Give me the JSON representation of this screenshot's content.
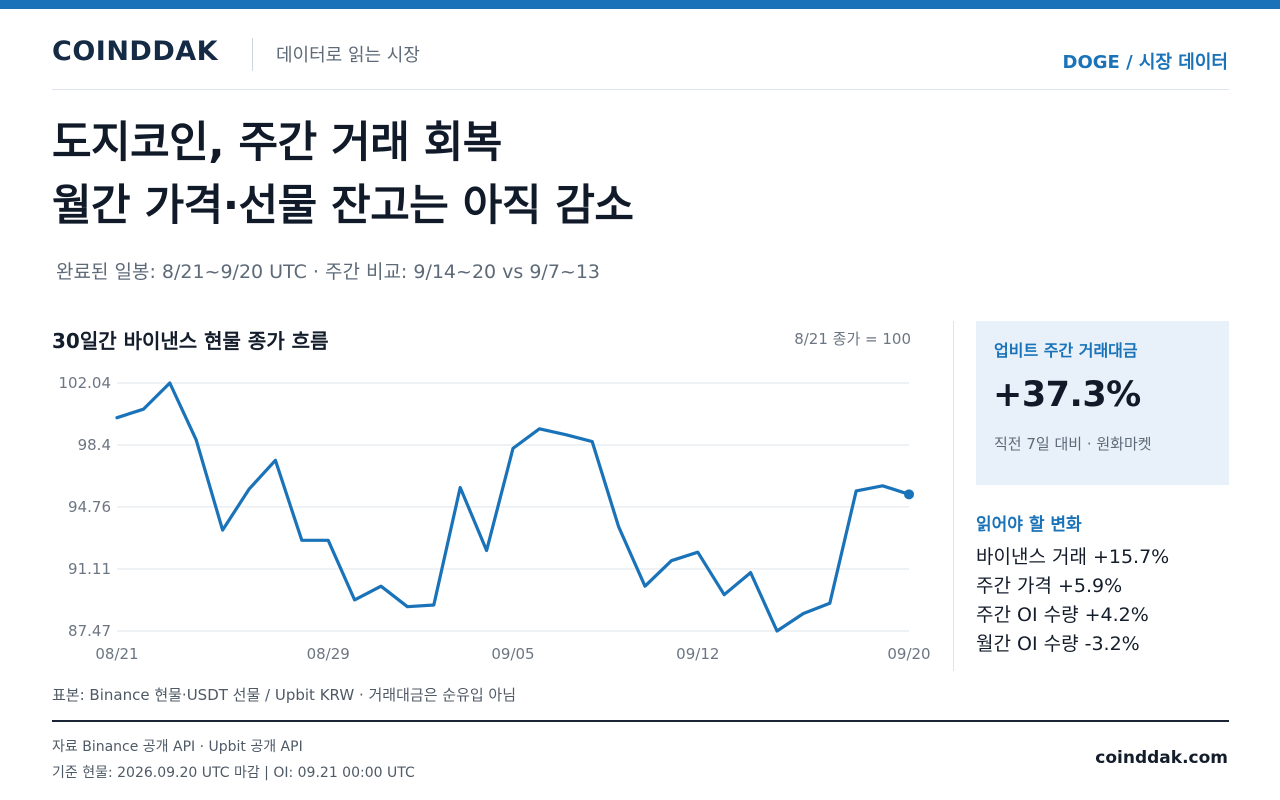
{
  "header": {
    "brand": "COINDDAK",
    "tagline": "데이터로 읽는 시장",
    "section": "DOGE / 시장 데이터"
  },
  "headline": {
    "line1": "도지코인, 주간 거래 회복",
    "line2": "월간 가격·선물 잔고는 아직 감소"
  },
  "subtitle": "완료된 일봉: 8/21~9/20 UTC · 주간 비교: 9/14~20 vs 9/7~13",
  "chart_section": {
    "title": "30일간 바이낸스 현물 종가 흐름",
    "note": "8/21 종가 = 100"
  },
  "chart_data": {
    "type": "line",
    "title": "30일간 바이낸스 현물 종가 흐름",
    "xlabel": "",
    "ylabel": "",
    "x": [
      "08/21",
      "08/22",
      "08/23",
      "08/24",
      "08/25",
      "08/26",
      "08/27",
      "08/28",
      "08/29",
      "08/30",
      "08/31",
      "09/01",
      "09/02",
      "09/03",
      "09/04",
      "09/05",
      "09/06",
      "09/07",
      "09/08",
      "09/09",
      "09/10",
      "09/11",
      "09/12",
      "09/13",
      "09/14",
      "09/15",
      "09/16",
      "09/17",
      "09/18",
      "09/19",
      "09/20"
    ],
    "values": [
      100.0,
      100.5,
      102.04,
      98.7,
      93.4,
      95.8,
      97.5,
      92.8,
      92.8,
      89.3,
      90.1,
      88.9,
      89.0,
      95.9,
      92.2,
      98.2,
      99.35,
      99.0,
      98.6,
      93.6,
      90.1,
      91.6,
      92.1,
      89.6,
      90.9,
      87.47,
      88.5,
      89.1,
      95.7,
      96.0,
      95.5
    ],
    "ylim": [
      87.47,
      102.04
    ],
    "y_ticks": [
      "102.04",
      "98.4",
      "94.76",
      "91.11",
      "87.47"
    ],
    "y_tick_values": [
      102.04,
      98.4,
      94.76,
      91.11,
      87.47
    ],
    "x_ticks": [
      "08/21",
      "08/29",
      "09/05",
      "09/12",
      "09/20"
    ],
    "grid": true,
    "line_color": "#1a73b8",
    "end_marker": true
  },
  "source_note": "표본: Binance 현물·USDT 선물 / Upbit KRW · 거래대금은 순유입 아님",
  "sidebar": {
    "card": {
      "label": "업비트 주간 거래대금",
      "value": "+37.3%",
      "sub": "직전 7일 대비 · 원화마켓"
    },
    "changes_title": "읽어야 할 변화",
    "changes": [
      "바이낸스 거래 +15.7%",
      "주간 가격 +5.9%",
      "주간 OI 수량 +4.2%",
      "월간 OI 수량 -3.2%"
    ]
  },
  "footer": {
    "source": "자료  Binance 공개 API · Upbit 공개 API",
    "basis": "기준  현물: 2026.09.20 UTC 마감 | OI: 09.21 00:00 UTC",
    "site": "coinddak.com"
  },
  "colors": {
    "accent": "#1a73b8",
    "card_bg": "#e8f1f9",
    "text": "#141d2b"
  }
}
